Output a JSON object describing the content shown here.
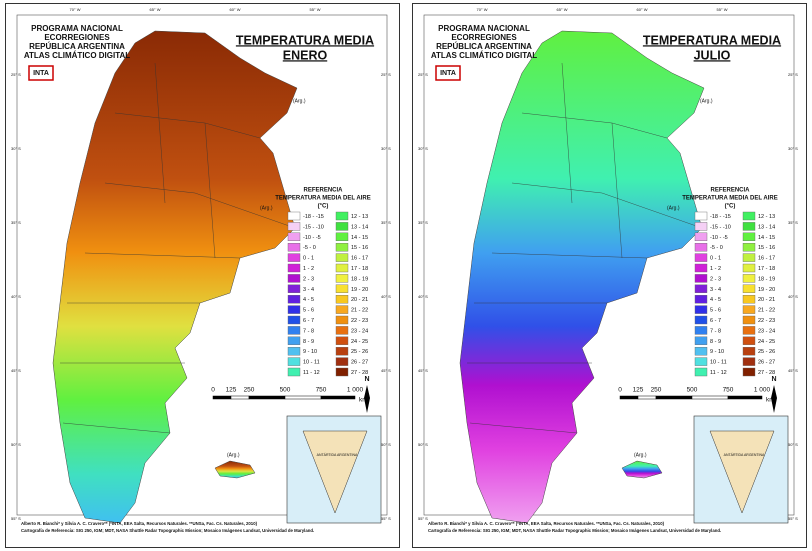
{
  "panels": [
    {
      "title_lines": [
        "TEMPERATURA MEDIA",
        "ENERO"
      ]
    },
    {
      "title_lines": [
        "TEMPERATURA MEDIA",
        "JULIO"
      ]
    }
  ],
  "program": [
    "PROGRAMA NACIONAL",
    "ECORREGIONES",
    "REPÚBLICA ARGENTINA",
    "ATLAS CLIMÁTICO DIGITAL"
  ],
  "logo": "INTA",
  "legend": {
    "title": [
      "REFERENCIA",
      "TEMPERATURA MEDIA DEL AIRE",
      "(°C)"
    ],
    "items": [
      {
        "label": "-18 - -15",
        "color": "#ffffff"
      },
      {
        "label": "-15 - -10",
        "color": "#f5d0f5"
      },
      {
        "label": "-10 - -5",
        "color": "#f0a0f0"
      },
      {
        "label": "-5 - 0",
        "color": "#e870e8"
      },
      {
        "label": "0 - 1",
        "color": "#e040e0"
      },
      {
        "label": "1 - 2",
        "color": "#d020d8"
      },
      {
        "label": "2 - 3",
        "color": "#b010d0"
      },
      {
        "label": "3 - 4",
        "color": "#8020d8"
      },
      {
        "label": "4 - 5",
        "color": "#6020e0"
      },
      {
        "label": "5 - 6",
        "color": "#3030e8"
      },
      {
        "label": "6 - 7",
        "color": "#2050e8"
      },
      {
        "label": "7 - 8",
        "color": "#3080f0"
      },
      {
        "label": "8 - 9",
        "color": "#40a0f0"
      },
      {
        "label": "9 - 10",
        "color": "#50c0f0"
      },
      {
        "label": "10 - 11",
        "color": "#50e0e0"
      },
      {
        "label": "11 - 12",
        "color": "#40f0b0"
      },
      {
        "label": "12 - 13",
        "color": "#40f060"
      },
      {
        "label": "13 - 14",
        "color": "#40e040"
      },
      {
        "label": "14 - 15",
        "color": "#60f040"
      },
      {
        "label": "15 - 16",
        "color": "#90f040"
      },
      {
        "label": "16 - 17",
        "color": "#c0f040"
      },
      {
        "label": "17 - 18",
        "color": "#e0f040"
      },
      {
        "label": "18 - 19",
        "color": "#f0f040"
      },
      {
        "label": "19 - 20",
        "color": "#f8e030"
      },
      {
        "label": "20 - 21",
        "color": "#f8c820"
      },
      {
        "label": "21 - 22",
        "color": "#f8a820"
      },
      {
        "label": "22 - 23",
        "color": "#f09010"
      },
      {
        "label": "23 - 24",
        "color": "#e87010"
      },
      {
        "label": "24 - 25",
        "color": "#d05010"
      },
      {
        "label": "25 - 26",
        "color": "#b84010"
      },
      {
        "label": "26 - 27",
        "color": "#a03010"
      },
      {
        "label": "27 - 28",
        "color": "#802000"
      }
    ]
  },
  "scale": {
    "labels": [
      "0",
      "125",
      "250",
      "500",
      "750",
      "1 000"
    ],
    "unit": "km"
  },
  "north": "N",
  "territory_label": "(Arg.)",
  "inset_label": "ANTÁRTIDA ARGENTINA",
  "credits": [
    "Alberto R. Bianchi* y Silvia A. C. Cravero** (*INTA, EEA Salta, Recursos Naturales. **UNSa, Fac. Cs. Naturales, 2010)",
    "Cartografía de Referencia: SIG 250, IGM; MDT, NASA Shuttle Radar Topographic Mission; Mosaico Imágenes Landsat, Universidad de Maryland."
  ],
  "lon_labels": [
    "70° W",
    "65° W",
    "60° W",
    "55° W"
  ],
  "lat_labels": [
    "25° S",
    "30° S",
    "35° S",
    "40° S",
    "45° S",
    "50° S",
    "55° S"
  ]
}
